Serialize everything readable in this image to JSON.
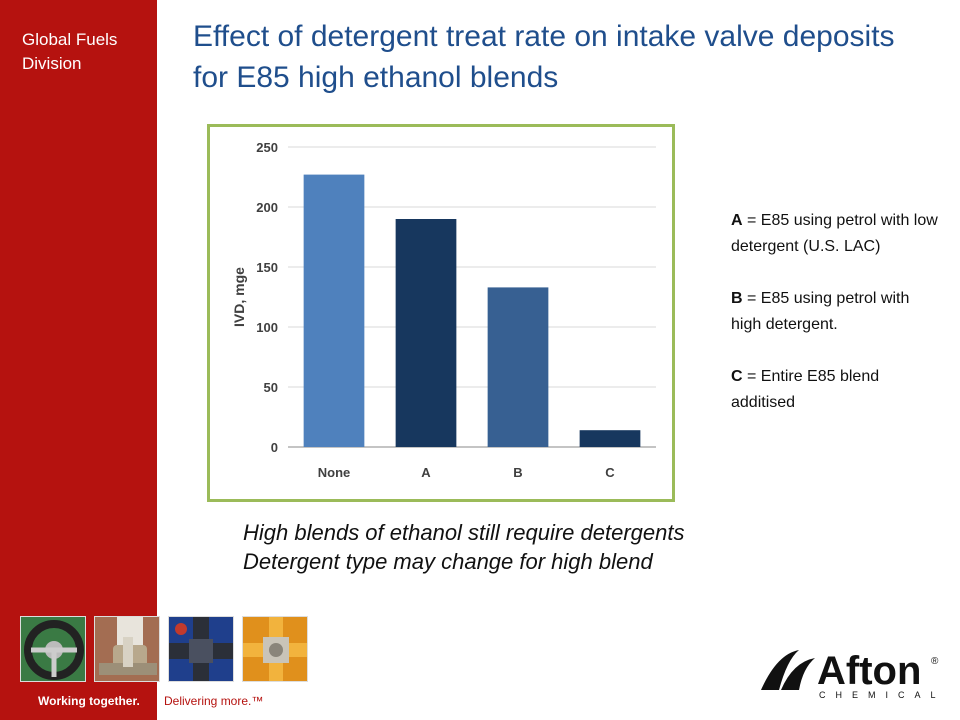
{
  "sidebar": {
    "division": "Global Fuels Division",
    "background": "#b5120f"
  },
  "header": {
    "title": "Effect of detergent treat rate on intake valve deposits for E85 high ethanol blends",
    "color": "#1f4e8c"
  },
  "chart_data": {
    "type": "bar",
    "categories": [
      "None",
      "A",
      "B",
      "C"
    ],
    "values": [
      227,
      190,
      133,
      14
    ],
    "bar_colors": [
      "#4f81bd",
      "#17375e",
      "#376092",
      "#17375e"
    ],
    "title": "",
    "xlabel": "",
    "ylabel": "IVD, mge",
    "ylim": [
      0,
      250
    ],
    "yticks": [
      0,
      50,
      100,
      150,
      200,
      250
    ],
    "grid": true,
    "border_color": "#9bbb59"
  },
  "legend": {
    "entries": [
      {
        "key": "A",
        "text": "= E85 using petrol with low detergent (U.S. LAC)"
      },
      {
        "key": "B",
        "text": "= E85 using petrol with high detergent."
      },
      {
        "key": "C",
        "text": "= Entire E85 blend additised"
      }
    ]
  },
  "notes": {
    "line1": "High blends of ethanol still require detergents",
    "line2": "Detergent type may change for high blend"
  },
  "footer": {
    "tagline_1": "Working together.",
    "tagline_2": "Delivering more.™"
  },
  "logo": {
    "name": "Afton",
    "subtext": "CHEMICAL",
    "mark": "®"
  },
  "tiles": [
    {
      "icon": "steering-wheel-icon"
    },
    {
      "icon": "valve-pipe-icon"
    },
    {
      "icon": "pipe-junction-icon"
    },
    {
      "icon": "pipe-fitting-icon"
    }
  ]
}
